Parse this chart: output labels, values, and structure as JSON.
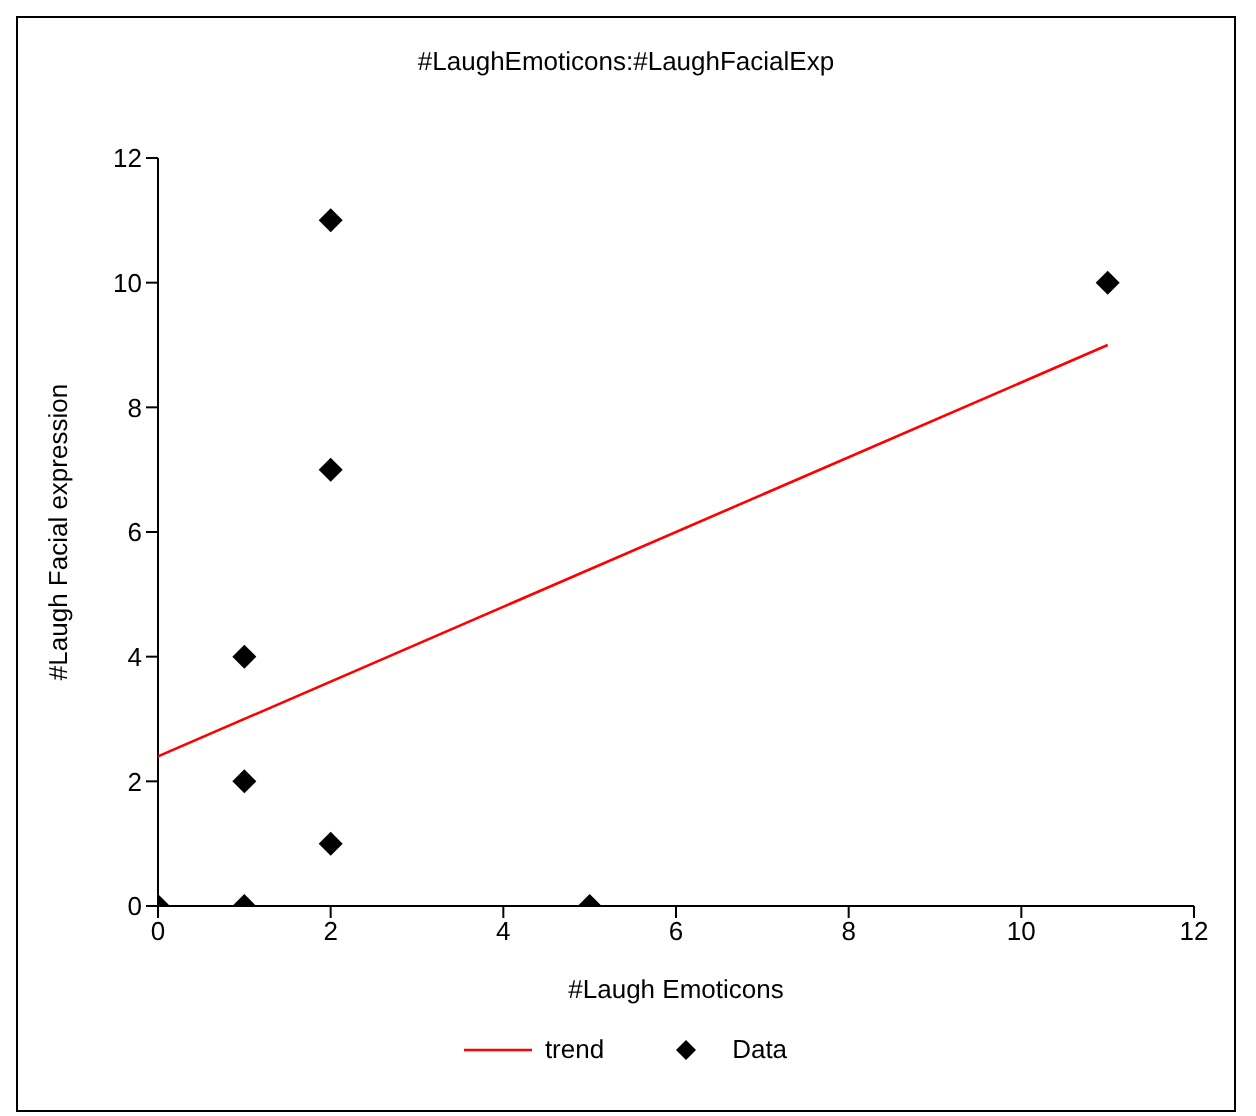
{
  "chart_data": {
    "type": "scatter",
    "title": "#LaughEmoticons:#LaughFacialExp",
    "xlabel": "#Laugh Emoticons",
    "ylabel": "#Laugh Facial expression",
    "series": [
      {
        "name": "trend",
        "type": "line",
        "color": "#ff0000",
        "x": [
          0,
          11
        ],
        "values": [
          2.4,
          9.0
        ],
        "marker": "none"
      },
      {
        "name": "Data",
        "type": "scatter",
        "color": "#000000",
        "x": [
          0,
          1,
          1,
          1,
          2,
          2,
          2,
          5,
          11
        ],
        "values": [
          0,
          0,
          2,
          4,
          1,
          7,
          11,
          0,
          10
        ],
        "marker": "diamond"
      }
    ],
    "xlim": [
      0,
      12
    ],
    "ylim": [
      0,
      12
    ],
    "xticks": [
      0,
      2,
      4,
      6,
      8,
      10,
      12
    ],
    "yticks": [
      0,
      2,
      4,
      6,
      8,
      10,
      12
    ],
    "grid": false,
    "legend": "bottom"
  }
}
